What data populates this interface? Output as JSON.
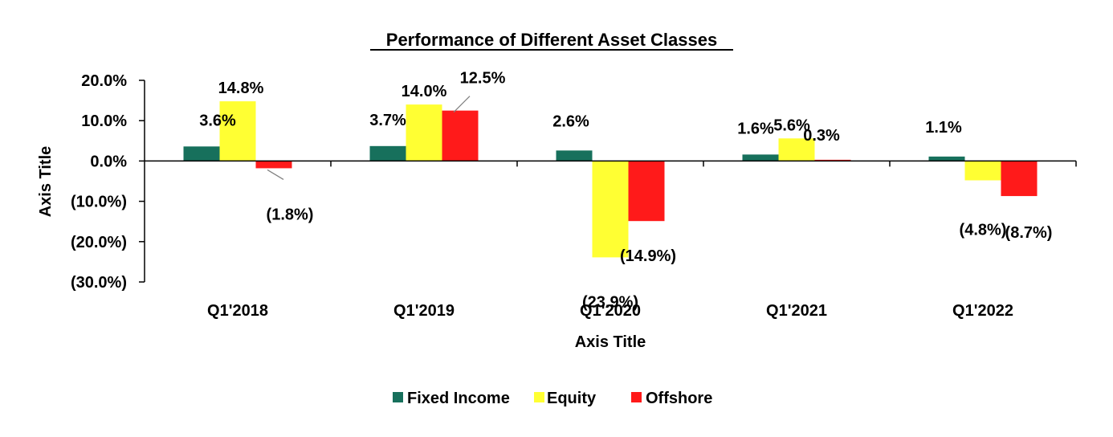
{
  "chart_data": {
    "type": "bar",
    "title": "Performance of Different Asset Classes",
    "xlabel": "Axis Title",
    "ylabel": "Axis Title",
    "ylim": [
      -30,
      20
    ],
    "yticks": [
      20,
      10,
      0,
      -10,
      -20,
      -30
    ],
    "ytick_labels": [
      "20.0%",
      "10.0%",
      "0.0%",
      "(10.0%)",
      "(20.0%)",
      "(30.0%)"
    ],
    "categories": [
      "Q1'2018",
      "Q1'2019",
      "Q1'2020",
      "Q1'2021",
      "Q1'2022"
    ],
    "series": [
      {
        "name": "Fixed Income",
        "color": "#17705c",
        "values": [
          3.6,
          3.7,
          2.6,
          1.6,
          1.1
        ],
        "labels": [
          "3.6%",
          "3.7%",
          "2.6%",
          "1.6%",
          "1.1%"
        ]
      },
      {
        "name": "Equity",
        "color": "#ffff33",
        "values": [
          14.8,
          14.0,
          -23.9,
          5.6,
          -4.8
        ],
        "labels": [
          "14.8%",
          "14.0%",
          "(23.9%)",
          "5.6%",
          "(4.8%)"
        ]
      },
      {
        "name": "Offshore",
        "color": "#ff1a1a",
        "values": [
          -1.8,
          12.5,
          -14.9,
          0.3,
          -8.7
        ],
        "labels": [
          "(1.8%)",
          "12.5%",
          "(14.9%)",
          "0.3%",
          "(8.7%)"
        ]
      }
    ],
    "grid": false,
    "legend": "bottom"
  }
}
